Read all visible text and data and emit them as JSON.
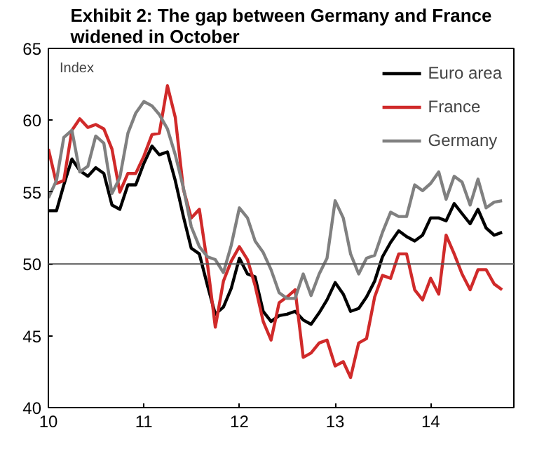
{
  "chart_data": {
    "type": "line",
    "title": "Exhibit 2: The gap between Germany and France widened in October",
    "ylabel": "Index",
    "x": [
      "2010-01",
      "2010-02",
      "2010-03",
      "2010-04",
      "2010-05",
      "2010-06",
      "2010-07",
      "2010-08",
      "2010-09",
      "2010-10",
      "2010-11",
      "2010-12",
      "2011-01",
      "2011-02",
      "2011-03",
      "2011-04",
      "2011-05",
      "2011-06",
      "2011-07",
      "2011-08",
      "2011-09",
      "2011-10",
      "2011-11",
      "2011-12",
      "2012-01",
      "2012-02",
      "2012-03",
      "2012-04",
      "2012-05",
      "2012-06",
      "2012-07",
      "2012-08",
      "2012-09",
      "2012-10",
      "2012-11",
      "2012-12",
      "2013-01",
      "2013-02",
      "2013-03",
      "2013-04",
      "2013-05",
      "2013-06",
      "2013-07",
      "2013-08",
      "2013-09",
      "2013-10",
      "2013-11",
      "2013-12",
      "2014-01",
      "2014-02",
      "2014-03",
      "2014-04",
      "2014-05",
      "2014-06",
      "2014-07",
      "2014-08",
      "2014-09",
      "2014-10"
    ],
    "series": [
      {
        "name": "Euro area",
        "color": "#000000",
        "values": [
          53.7,
          53.7,
          55.5,
          57.3,
          56.5,
          56.1,
          56.7,
          56.3,
          54.1,
          53.8,
          55.5,
          55.5,
          57.0,
          58.2,
          57.6,
          57.8,
          55.8,
          53.3,
          51.1,
          50.7,
          48.5,
          46.5,
          47.0,
          48.3,
          50.4,
          49.3,
          49.1,
          46.7,
          46.0,
          46.4,
          46.5,
          46.7,
          46.1,
          45.8,
          46.6,
          47.5,
          48.7,
          47.9,
          46.7,
          46.9,
          47.7,
          48.8,
          50.5,
          51.5,
          52.3,
          51.9,
          51.6,
          52.0,
          53.2,
          53.2,
          53.0,
          54.2,
          53.5,
          52.8,
          53.8,
          52.5,
          52.0,
          52.2
        ]
      },
      {
        "name": "France",
        "color": "#d02a2a",
        "values": [
          58.0,
          55.6,
          55.8,
          59.3,
          60.1,
          59.5,
          59.7,
          59.4,
          58.0,
          55.0,
          56.3,
          56.3,
          57.5,
          59.0,
          59.1,
          62.4,
          60.2,
          55.2,
          53.2,
          53.8,
          50.0,
          45.6,
          48.8,
          50.2,
          51.2,
          50.3,
          48.5,
          46.0,
          44.7,
          47.3,
          47.7,
          48.2,
          43.5,
          43.8,
          44.5,
          44.7,
          42.9,
          43.2,
          42.1,
          44.5,
          44.8,
          47.7,
          49.2,
          49.0,
          50.7,
          50.7,
          48.2,
          47.5,
          49.0,
          47.9,
          52.0,
          50.7,
          49.3,
          48.2,
          49.6,
          49.6,
          48.6,
          48.2
        ]
      },
      {
        "name": "Germany",
        "color": "#808080",
        "values": [
          54.6,
          55.8,
          58.8,
          59.3,
          56.4,
          56.8,
          58.9,
          58.4,
          54.9,
          56.0,
          59.1,
          60.5,
          61.3,
          61.0,
          60.4,
          59.4,
          57.6,
          55.3,
          52.6,
          51.2,
          50.5,
          50.3,
          49.4,
          51.3,
          53.9,
          53.2,
          51.6,
          50.8,
          49.6,
          48.0,
          47.6,
          47.6,
          49.3,
          47.8,
          49.3,
          50.4,
          54.4,
          53.2,
          50.7,
          49.3,
          50.4,
          50.6,
          52.2,
          53.6,
          53.3,
          53.3,
          55.5,
          55.1,
          55.6,
          56.4,
          54.5,
          56.1,
          55.7,
          54.1,
          55.9,
          53.9,
          54.3,
          54.4
        ]
      }
    ],
    "xlim": [
      "2010-01",
      "2014-11-15"
    ],
    "xticks": [
      {
        "value": "2010-01",
        "label": "10"
      },
      {
        "value": "2011-01",
        "label": "11"
      },
      {
        "value": "2012-01",
        "label": "12"
      },
      {
        "value": "2013-01",
        "label": "13"
      },
      {
        "value": "2014-01",
        "label": "14"
      }
    ],
    "ylim": [
      40,
      65
    ],
    "yticks": [
      40,
      45,
      50,
      55,
      60,
      65
    ],
    "ref_lines": [
      {
        "axis": "y",
        "value": 50,
        "color": "#555555"
      }
    ],
    "grid": false,
    "legend": "top right",
    "marker": "none",
    "line_style": "solid"
  }
}
